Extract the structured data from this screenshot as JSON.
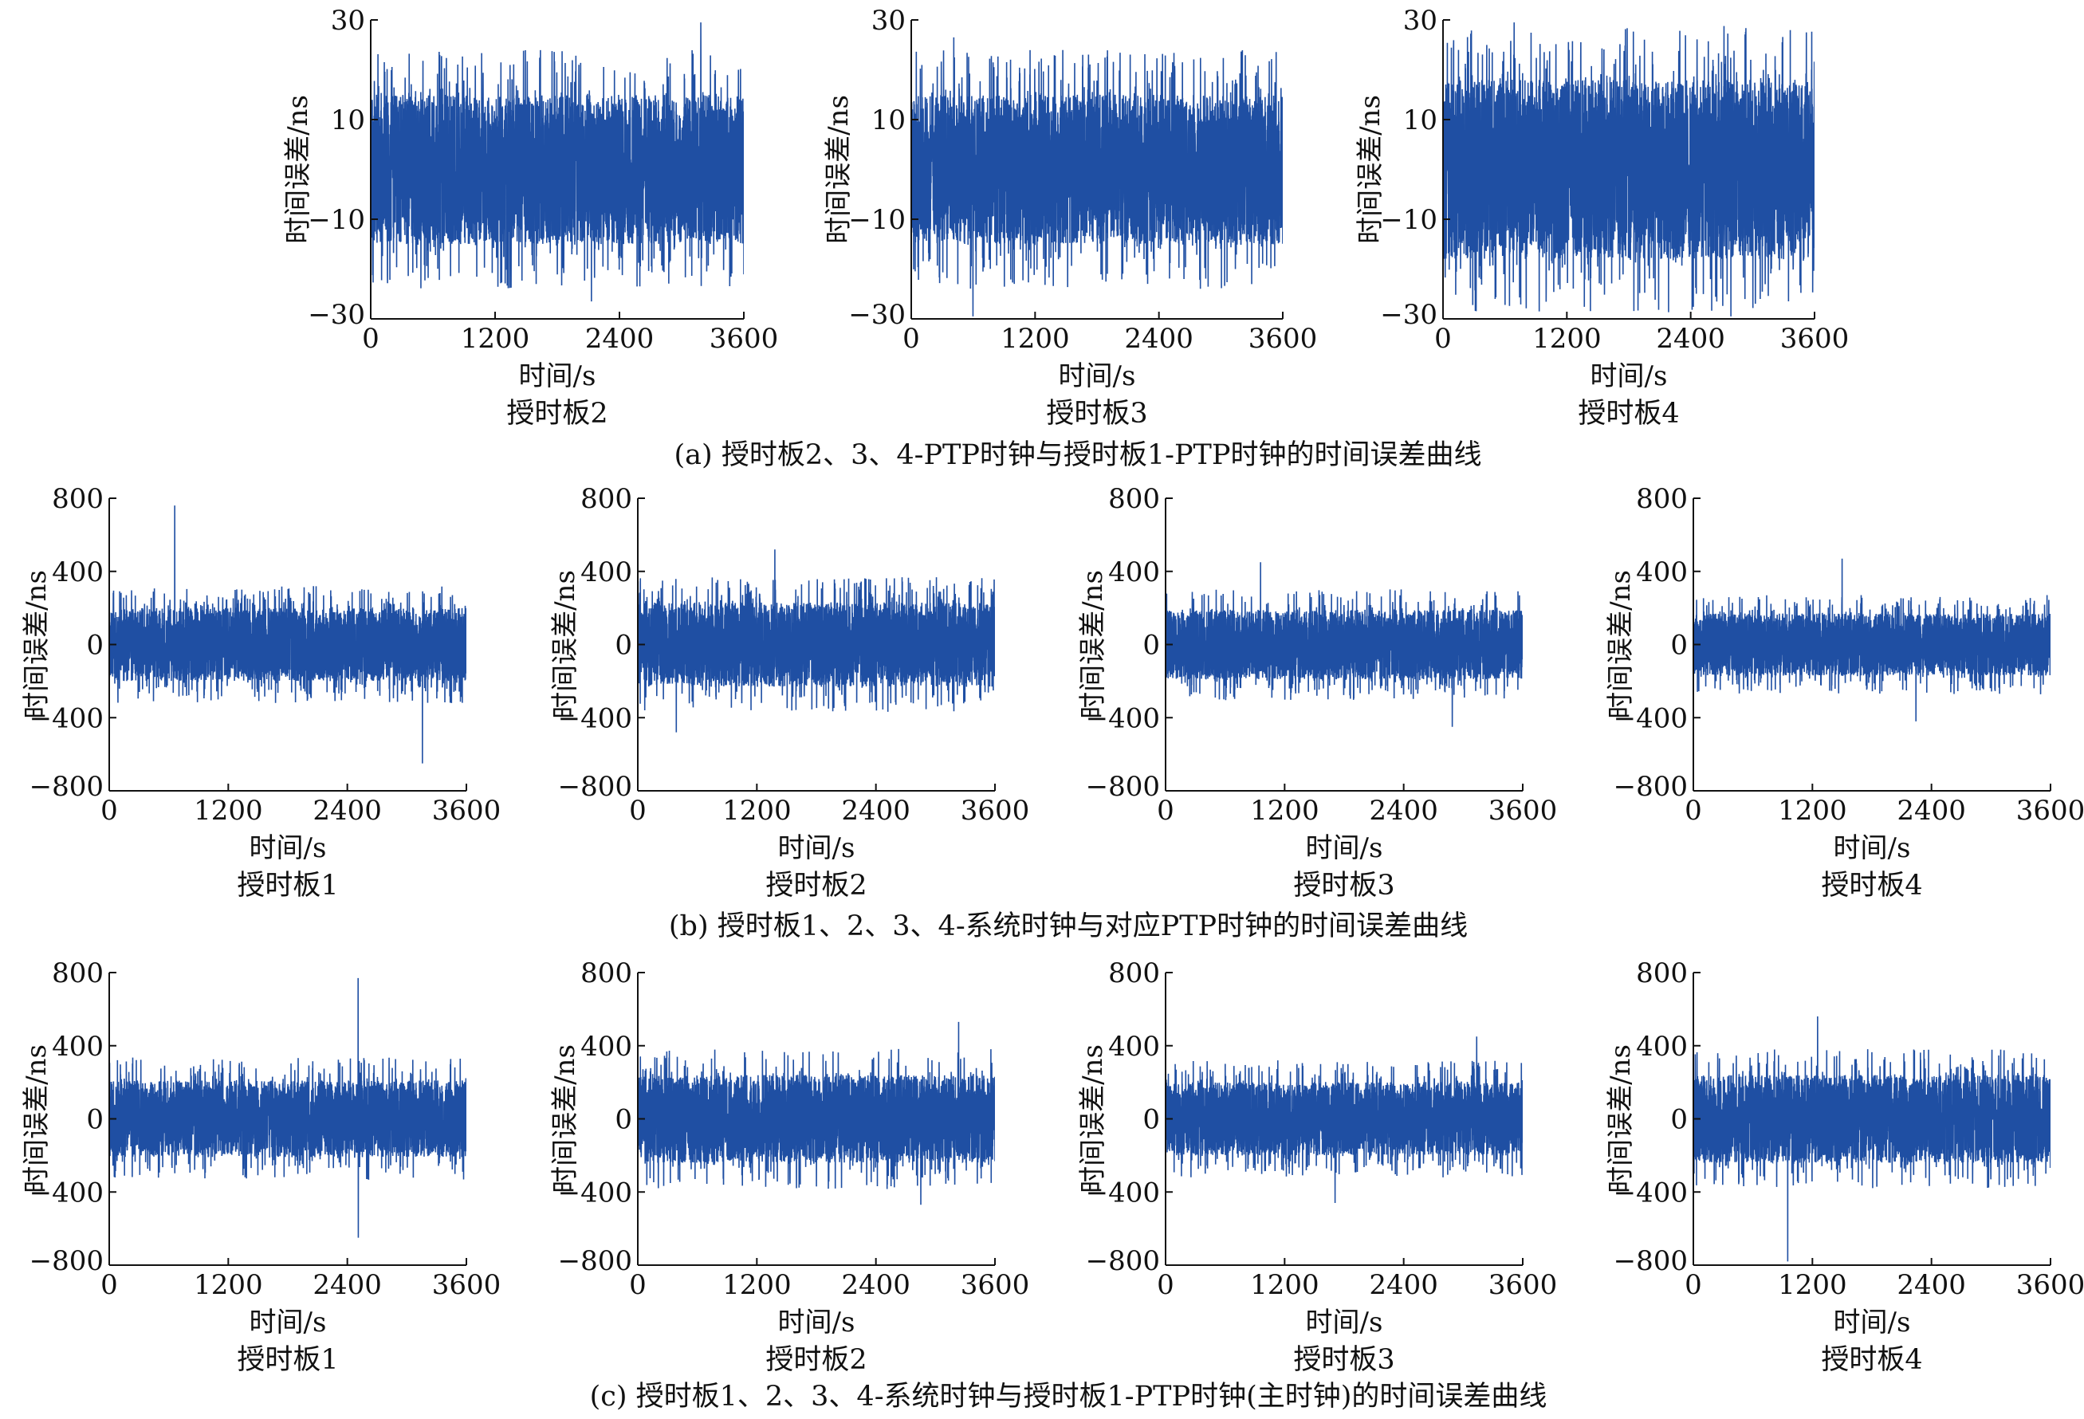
{
  "figure": {
    "row_captions": [
      "(a) 授时板2、3、4-PTP时钟与授时板1-PTP时钟的时间误差曲线",
      "(b) 授时板1、2、3、4-系统时钟与对应PTP时钟的时间误差曲线",
      "(c) 授时板1、2、3、4-系统时钟与授时板1-PTP时钟(主时钟)的时间误差曲线"
    ]
  },
  "colors": {
    "series": "#1f4fa3",
    "axis": "#111111",
    "background": "#ffffff"
  },
  "chart_data": [
    {
      "type": "line",
      "row": 0,
      "col": 0,
      "title": "授时板2",
      "xlabel": "时间/s",
      "ylabel": "时间误差/ns",
      "xlim": [
        0,
        3600
      ],
      "ylim": [
        -30,
        30
      ],
      "xticks": [
        0,
        1200,
        2400,
        3600
      ],
      "xtick_labels": [
        "0",
        "1200",
        "2400",
        "3600"
      ],
      "yticks": [
        -30,
        -10,
        10,
        30
      ],
      "ytick_labels": [
        "−30",
        "−10",
        "10",
        "30"
      ],
      "grid": false,
      "noise": {
        "n_samples": 3600,
        "mean": 0,
        "upper_envelope": 15,
        "lower_envelope": -15,
        "max": 29.5,
        "min": -26.5
      }
    },
    {
      "type": "line",
      "row": 0,
      "col": 1,
      "title": "授时板3",
      "xlabel": "时间/s",
      "ylabel": "时间误差/ns",
      "xlim": [
        0,
        3600
      ],
      "ylim": [
        -30,
        30
      ],
      "xticks": [
        0,
        1200,
        2400,
        3600
      ],
      "xtick_labels": [
        "0",
        "1200",
        "2400",
        "3600"
      ],
      "yticks": [
        -30,
        -10,
        10,
        30
      ],
      "ytick_labels": [
        "−30",
        "−10",
        "10",
        "30"
      ],
      "grid": false,
      "noise": {
        "n_samples": 3600,
        "mean": 0,
        "upper_envelope": 15,
        "lower_envelope": -15,
        "max": 26.5,
        "min": -29.5
      }
    },
    {
      "type": "line",
      "row": 0,
      "col": 2,
      "title": "授时板4",
      "xlabel": "时间/s",
      "ylabel": "时间误差/ns",
      "xlim": [
        0,
        3600
      ],
      "ylim": [
        -30,
        30
      ],
      "xticks": [
        0,
        1200,
        2400,
        3600
      ],
      "xtick_labels": [
        "0",
        "1200",
        "2400",
        "3600"
      ],
      "yticks": [
        -30,
        -10,
        10,
        30
      ],
      "ytick_labels": [
        "−30",
        "−10",
        "10",
        "30"
      ],
      "grid": false,
      "noise": {
        "n_samples": 3600,
        "mean": 0,
        "upper_envelope": 18,
        "lower_envelope": -18,
        "max": 29.5,
        "min": -29.5
      }
    },
    {
      "type": "line",
      "row": 1,
      "col": 0,
      "title": "授时板1",
      "xlabel": "时间/s",
      "ylabel": "时间误差/ns",
      "xlim": [
        0,
        3600
      ],
      "ylim": [
        -800,
        800
      ],
      "xticks": [
        0,
        1200,
        2400,
        3600
      ],
      "xtick_labels": [
        "0",
        "1200",
        "2400",
        "3600"
      ],
      "yticks": [
        -800,
        -400,
        0,
        400,
        800
      ],
      "ytick_labels": [
        "−800",
        "−400",
        "0",
        "400",
        "800"
      ],
      "grid": false,
      "noise": {
        "n_samples": 3600,
        "mean": 0,
        "upper_envelope": 200,
        "lower_envelope": -200,
        "max": 760,
        "min": -650
      }
    },
    {
      "type": "line",
      "row": 1,
      "col": 1,
      "title": "授时板2",
      "xlabel": "时间/s",
      "ylabel": "时间误差/ns",
      "xlim": [
        0,
        3600
      ],
      "ylim": [
        -800,
        800
      ],
      "xticks": [
        0,
        1200,
        2400,
        3600
      ],
      "xtick_labels": [
        "0",
        "1200",
        "2400",
        "3600"
      ],
      "yticks": [
        -800,
        -400,
        0,
        400,
        800
      ],
      "ytick_labels": [
        "−800",
        "−400",
        "0",
        "400",
        "800"
      ],
      "grid": false,
      "noise": {
        "n_samples": 3600,
        "mean": 0,
        "upper_envelope": 230,
        "lower_envelope": -230,
        "max": 520,
        "min": -480
      }
    },
    {
      "type": "line",
      "row": 1,
      "col": 2,
      "title": "授时板3",
      "xlabel": "时间/s",
      "ylabel": "时间误差/ns",
      "xlim": [
        0,
        3600
      ],
      "ylim": [
        -800,
        800
      ],
      "xticks": [
        0,
        1200,
        2400,
        3600
      ],
      "xtick_labels": [
        "0",
        "1200",
        "2400",
        "3600"
      ],
      "yticks": [
        -800,
        -400,
        0,
        400,
        800
      ],
      "ytick_labels": [
        "−800",
        "−400",
        "0",
        "400",
        "800"
      ],
      "grid": false,
      "noise": {
        "n_samples": 3600,
        "mean": 0,
        "upper_envelope": 190,
        "lower_envelope": -190,
        "max": 450,
        "min": -450
      }
    },
    {
      "type": "line",
      "row": 1,
      "col": 3,
      "title": "授时板4",
      "xlabel": "时间/s",
      "ylabel": "时间误差/ns",
      "xlim": [
        0,
        3600
      ],
      "ylim": [
        -800,
        800
      ],
      "xticks": [
        0,
        1200,
        2400,
        3600
      ],
      "xtick_labels": [
        "0",
        "1200",
        "2400",
        "3600"
      ],
      "yticks": [
        -800,
        -400,
        0,
        400,
        800
      ],
      "ytick_labels": [
        "−800",
        "−400",
        "0",
        "400",
        "800"
      ],
      "grid": false,
      "noise": {
        "n_samples": 3600,
        "mean": 0,
        "upper_envelope": 170,
        "lower_envelope": -170,
        "max": 470,
        "min": -420
      }
    },
    {
      "type": "line",
      "row": 2,
      "col": 0,
      "title": "授时板1",
      "xlabel": "时间/s",
      "ylabel": "时间误差/ns",
      "xlim": [
        0,
        3600
      ],
      "ylim": [
        -800,
        800
      ],
      "xticks": [
        0,
        1200,
        2400,
        3600
      ],
      "xtick_labels": [
        "0",
        "1200",
        "2400",
        "3600"
      ],
      "yticks": [
        -800,
        -400,
        0,
        400,
        800
      ],
      "ytick_labels": [
        "−800",
        "−400",
        "0",
        "400",
        "800"
      ],
      "grid": false,
      "noise": {
        "n_samples": 3600,
        "mean": 0,
        "upper_envelope": 210,
        "lower_envelope": -210,
        "max": 770,
        "min": -650
      }
    },
    {
      "type": "line",
      "row": 2,
      "col": 1,
      "title": "授时板2",
      "xlabel": "时间/s",
      "ylabel": "时间误差/ns",
      "xlim": [
        0,
        3600
      ],
      "ylim": [
        -800,
        800
      ],
      "xticks": [
        0,
        1200,
        2400,
        3600
      ],
      "xtick_labels": [
        "0",
        "1200",
        "2400",
        "3600"
      ],
      "yticks": [
        -800,
        -400,
        0,
        400,
        800
      ],
      "ytick_labels": [
        "−800",
        "−400",
        "0",
        "400",
        "800"
      ],
      "grid": false,
      "noise": {
        "n_samples": 3600,
        "mean": 0,
        "upper_envelope": 240,
        "lower_envelope": -240,
        "max": 530,
        "min": -470
      }
    },
    {
      "type": "line",
      "row": 2,
      "col": 2,
      "title": "授时板3",
      "xlabel": "时间/s",
      "ylabel": "时间误差/ns",
      "xlim": [
        0,
        3600
      ],
      "ylim": [
        -800,
        800
      ],
      "xticks": [
        0,
        1200,
        2400,
        3600
      ],
      "xtick_labels": [
        "0",
        "1200",
        "2400",
        "3600"
      ],
      "yticks": [
        -800,
        -400,
        0,
        400,
        800
      ],
      "ytick_labels": [
        "−800",
        "−400",
        "0",
        "400",
        "800"
      ],
      "grid": false,
      "noise": {
        "n_samples": 3600,
        "mean": 0,
        "upper_envelope": 200,
        "lower_envelope": -200,
        "max": 450,
        "min": -460
      }
    },
    {
      "type": "line",
      "row": 2,
      "col": 3,
      "title": "授时板4",
      "xlabel": "时间/s",
      "ylabel": "时间误差/ns",
      "xlim": [
        0,
        3600
      ],
      "ylim": [
        -800,
        800
      ],
      "xticks": [
        0,
        1200,
        2400,
        3600
      ],
      "xtick_labels": [
        "0",
        "1200",
        "2400",
        "3600"
      ],
      "yticks": [
        -800,
        -400,
        0,
        400,
        800
      ],
      "ytick_labels": [
        "−800",
        "−400",
        "0",
        "400",
        "800"
      ],
      "grid": false,
      "noise": {
        "n_samples": 3600,
        "mean": 0,
        "upper_envelope": 240,
        "lower_envelope": -240,
        "max": 560,
        "min": -780
      }
    }
  ]
}
